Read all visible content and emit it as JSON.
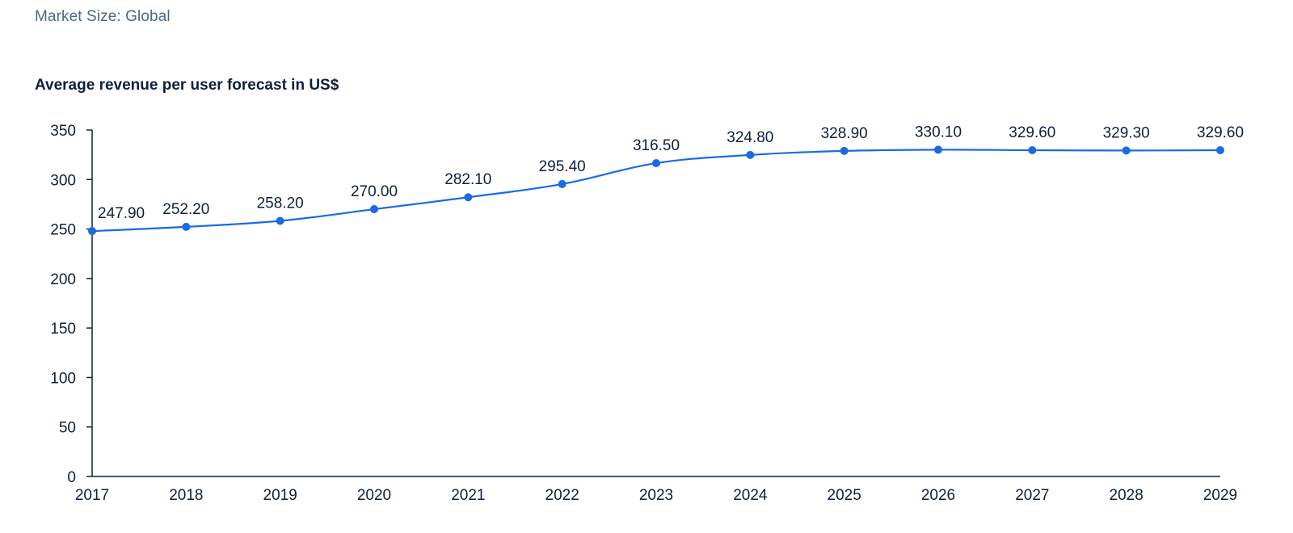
{
  "header": {
    "market_label": "Market Size: Global"
  },
  "chart_data": {
    "type": "line",
    "title": "Average revenue per user forecast in US$",
    "xlabel": "",
    "ylabel": "",
    "categories": [
      "2017",
      "2018",
      "2019",
      "2020",
      "2021",
      "2022",
      "2023",
      "2024",
      "2025",
      "2026",
      "2027",
      "2028",
      "2029"
    ],
    "series": [
      {
        "values": [
          247.9,
          252.2,
          258.2,
          270.0,
          282.1,
          295.4,
          316.5,
          324.8,
          328.9,
          330.1,
          329.6,
          329.3,
          329.6
        ],
        "labels": [
          "247.90",
          "252.20",
          "258.20",
          "270.00",
          "282.10",
          "295.40",
          "316.50",
          "324.80",
          "328.90",
          "330.10",
          "329.60",
          "329.30",
          "329.60"
        ]
      }
    ],
    "yticks": [
      0,
      50,
      100,
      150,
      200,
      250,
      300,
      350
    ],
    "ylim": [
      0,
      350
    ],
    "grid": false,
    "line_color": "#1a6ae3",
    "axis_color": "#0f1f3d"
  }
}
